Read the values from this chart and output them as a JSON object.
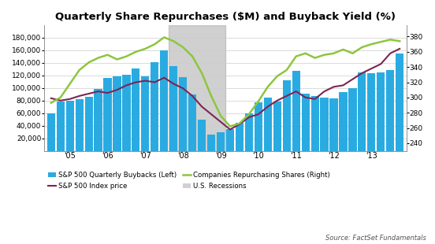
{
  "title": "Quarterly Share Repurchases ($M) and Buyback Yield (%)",
  "bar_color": "#29ABE2",
  "recession_color": "#AAAAAA",
  "sp500_color": "#7B2554",
  "companies_color": "#8DC63F",
  "buybacks": [
    60000,
    79000,
    80000,
    82000,
    86000,
    99000,
    116000,
    119000,
    121000,
    131000,
    118000,
    141000,
    160000,
    135000,
    117000,
    90000,
    50000,
    26000,
    30000,
    35000,
    45000,
    59000,
    77000,
    85000,
    78000,
    112000,
    127000,
    91000,
    87000,
    85000,
    83000,
    93000,
    100000,
    125000,
    124000,
    125000,
    129000,
    155000
  ],
  "sp500_values": [
    299,
    296,
    298,
    302,
    305,
    308,
    306,
    310,
    316,
    320,
    322,
    320,
    326,
    318,
    312,
    302,
    288,
    278,
    268,
    258,
    265,
    274,
    278,
    288,
    296,
    302,
    308,
    300,
    298,
    308,
    314,
    316,
    324,
    332,
    338,
    344,
    358,
    364
  ],
  "companies_repurchasing": [
    293,
    300,
    318,
    336,
    346,
    352,
    356,
    350,
    354,
    360,
    364,
    370,
    379,
    374,
    366,
    354,
    332,
    302,
    276,
    262,
    266,
    278,
    295,
    314,
    328,
    336,
    354,
    358,
    352,
    356,
    358,
    363,
    358,
    366,
    370,
    373,
    376,
    374
  ],
  "recession_start_idx": 13,
  "recession_end_idx": 18,
  "ylim_left": [
    0,
    200000
  ],
  "ylim_right": [
    230,
    395
  ],
  "yticks_left": [
    20000,
    40000,
    60000,
    80000,
    100000,
    120000,
    140000,
    160000,
    180000
  ],
  "yticks_right": [
    240,
    260,
    280,
    300,
    320,
    340,
    360,
    380
  ],
  "xtick_labels": [
    "'05",
    "'06",
    "'07",
    "'08",
    "'09",
    "'10",
    "'11",
    "'12",
    "'13"
  ],
  "xtick_positions": [
    2,
    6,
    10,
    14,
    18,
    22,
    26,
    30,
    34
  ],
  "source_text": "Source: FactSet Fundamentals",
  "legend_items": [
    {
      "type": "bar",
      "color": "#29ABE2",
      "label": "S&P 500 Quarterly Buybacks (Left)"
    },
    {
      "type": "line",
      "color": "#7B2554",
      "label": "S&P 500 Index price"
    },
    {
      "type": "line",
      "color": "#8DC63F",
      "label": "Companies Repurchasing Shares (Right)"
    },
    {
      "type": "patch",
      "color": "#AAAAAA",
      "label": "U.S. Recessions"
    }
  ]
}
